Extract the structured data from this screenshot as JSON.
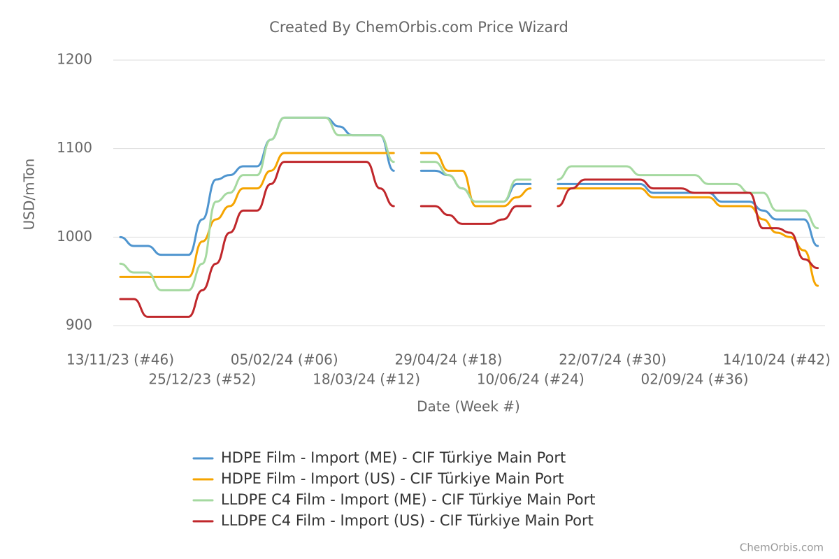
{
  "chart_data": {
    "type": "line",
    "title": "Created By ChemOrbis.com Price Wizard",
    "x_label": "Date (Week #)",
    "y_label": "USD/mTon",
    "credits": "ChemOrbis.com",
    "categories": [
      "13/11/23 (#46)",
      null,
      null,
      null,
      null,
      null,
      "25/12/23 (#52)",
      null,
      null,
      null,
      null,
      null,
      "05/02/24 (#06)",
      null,
      null,
      null,
      null,
      null,
      "18/03/24 (#12)",
      null,
      null,
      null,
      null,
      null,
      "29/04/24 (#18)",
      null,
      null,
      null,
      null,
      null,
      "10/06/24 (#24)",
      null,
      null,
      null,
      null,
      null,
      "22/07/24 (#30)",
      null,
      null,
      null,
      null,
      null,
      "02/09/24 (#36)",
      null,
      null,
      null,
      null,
      null,
      "14/10/24 (#42)",
      null,
      null,
      null
    ],
    "ylim": [
      900,
      1200
    ],
    "yticks": [
      900,
      1000,
      1100,
      1200
    ],
    "grid": true,
    "legend": "bottom",
    "series": [
      {
        "name": "HDPE Film - Import (ME) - CIF Türkiye Main Port",
        "color": "#4f95cf",
        "values": [
          1000,
          990,
          990,
          980,
          980,
          980,
          1020,
          1065,
          1070,
          1080,
          1080,
          1110,
          1135,
          1135,
          1135,
          1135,
          1125,
          1115,
          1115,
          1115,
          1075,
          null,
          1075,
          1075,
          1070,
          1055,
          1040,
          1040,
          1040,
          1060,
          1060,
          null,
          1060,
          1060,
          1060,
          1060,
          1060,
          1060,
          1060,
          1050,
          1050,
          1050,
          1050,
          1050,
          1040,
          1040,
          1040,
          1030,
          1020,
          1020,
          1020,
          990
        ]
      },
      {
        "name": "HDPE Film - Import (US) - CIF Türkiye Main Port",
        "color": "#f5a400",
        "values": [
          955,
          955,
          955,
          955,
          955,
          955,
          995,
          1020,
          1035,
          1055,
          1055,
          1075,
          1095,
          1095,
          1095,
          1095,
          1095,
          1095,
          1095,
          1095,
          1095,
          null,
          1095,
          1095,
          1075,
          1075,
          1035,
          1035,
          1035,
          1045,
          1055,
          null,
          1055,
          1055,
          1055,
          1055,
          1055,
          1055,
          1055,
          1045,
          1045,
          1045,
          1045,
          1045,
          1035,
          1035,
          1035,
          1020,
          1005,
          1000,
          985,
          945
        ]
      },
      {
        "name": "LLDPE C4 Film - Import (ME) - CIF Türkiye Main Port",
        "color": "#a5d9a0",
        "values": [
          970,
          960,
          960,
          940,
          940,
          940,
          970,
          1040,
          1050,
          1070,
          1070,
          1110,
          1135,
          1135,
          1135,
          1135,
          1115,
          1115,
          1115,
          1115,
          1085,
          null,
          1085,
          1085,
          1070,
          1055,
          1040,
          1040,
          1040,
          1065,
          1065,
          null,
          1065,
          1080,
          1080,
          1080,
          1080,
          1080,
          1070,
          1070,
          1070,
          1070,
          1070,
          1060,
          1060,
          1060,
          1050,
          1050,
          1030,
          1030,
          1030,
          1010
        ]
      },
      {
        "name": "LLDPE C4 Film - Import (US) - CIF Türkiye Main Port",
        "color": "#c0272b",
        "values": [
          930,
          930,
          910,
          910,
          910,
          910,
          940,
          970,
          1005,
          1030,
          1030,
          1060,
          1085,
          1085,
          1085,
          1085,
          1085,
          1085,
          1085,
          1055,
          1035,
          null,
          1035,
          1035,
          1025,
          1015,
          1015,
          1015,
          1020,
          1035,
          1035,
          null,
          1035,
          1055,
          1065,
          1065,
          1065,
          1065,
          1065,
          1055,
          1055,
          1055,
          1050,
          1050,
          1050,
          1050,
          1050,
          1010,
          1010,
          1005,
          975,
          965
        ]
      }
    ]
  }
}
